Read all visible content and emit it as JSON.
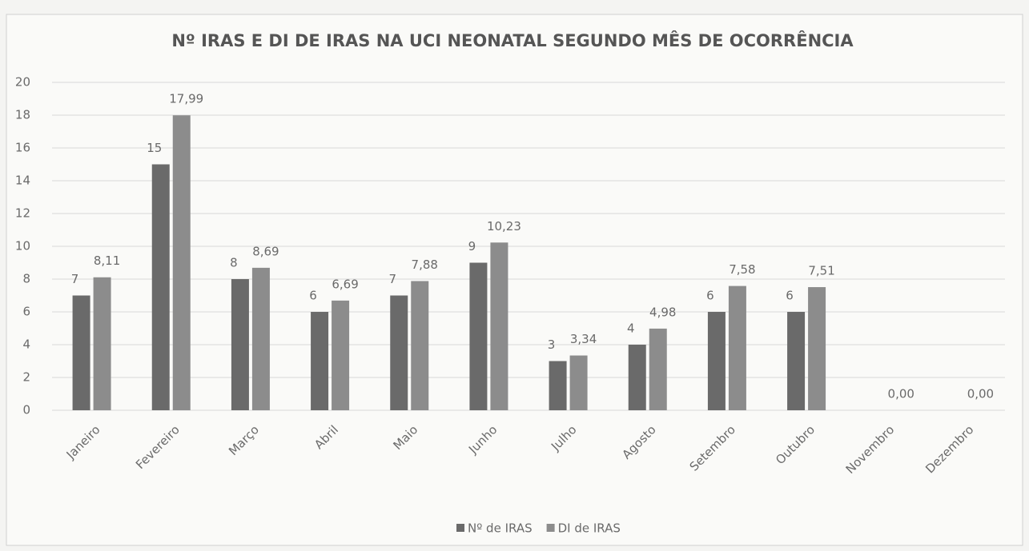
{
  "chart_data": {
    "type": "bar",
    "title": "Nº IRAS E DI DE IRAS NA UCI NEONATAL SEGUNDO MÊS DE OCORRÊNCIA",
    "categories": [
      "Janeiro",
      "Fevereiro",
      "Março",
      "Abril",
      "Maio",
      "Junho",
      "Julho",
      "Agosto",
      "Setembro",
      "Outubro",
      "Novembro",
      "Dezembro"
    ],
    "series": [
      {
        "name": "Nº de IRAS",
        "color": "#6a6a6a",
        "values": [
          7,
          15,
          8,
          6,
          7,
          9,
          3,
          4,
          6,
          6,
          null,
          null
        ]
      },
      {
        "name": "DI de IRAS",
        "color": "#8c8c8c",
        "values": [
          8.11,
          17.99,
          8.69,
          6.69,
          7.88,
          10.23,
          3.34,
          4.98,
          7.58,
          7.51,
          0,
          0
        ],
        "value_labels": [
          "8,11",
          "17,99",
          "8,69",
          "6,69",
          "7,88",
          "10,23",
          "3,34",
          "4,98",
          "7,58",
          "7,51",
          "0,00",
          "0,00"
        ]
      }
    ],
    "ylim": [
      0,
      20
    ],
    "yticks": [
      0,
      2,
      4,
      6,
      8,
      10,
      12,
      14,
      16,
      18,
      20
    ],
    "grid": true,
    "legend": "bottom"
  }
}
